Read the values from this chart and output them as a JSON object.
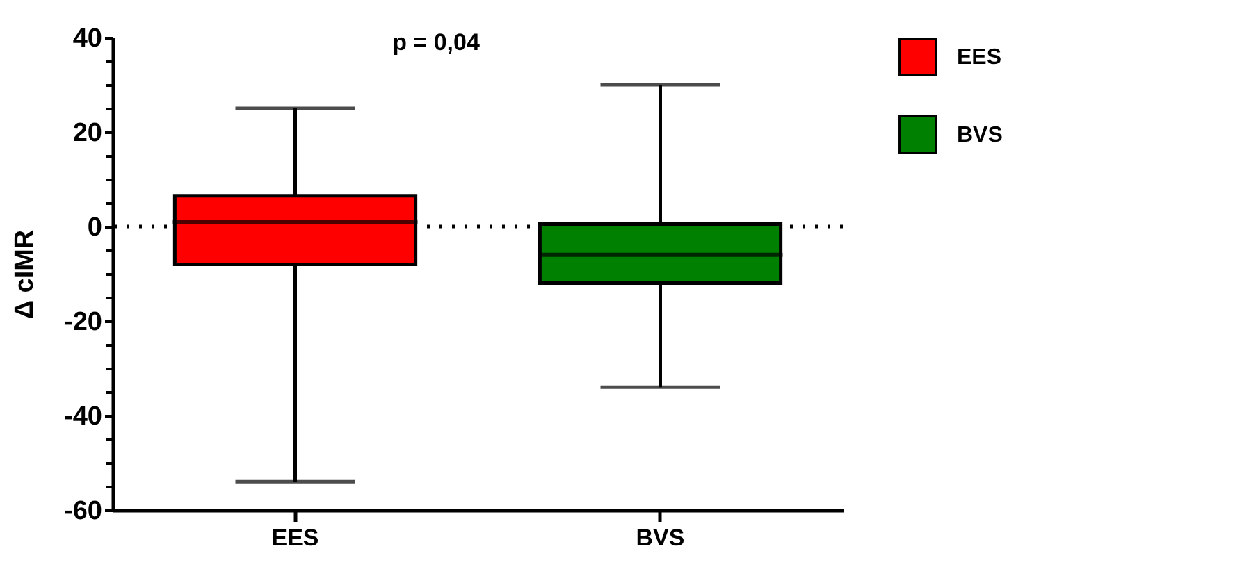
{
  "chart_data": {
    "type": "box",
    "ylabel": "Δ cIMR",
    "categories": [
      "EES",
      "BVS"
    ],
    "ylim": [
      -60,
      40
    ],
    "yticks": [
      -60,
      {
        "value": -55,
        "label": null
      },
      {
        "value": -50,
        "label": null
      },
      {
        "value": -45,
        "label": null
      },
      -40,
      {
        "value": -35,
        "label": null
      },
      {
        "value": -30,
        "label": null
      },
      {
        "value": -25,
        "label": null
      },
      -20,
      {
        "value": -15,
        "label": null
      },
      {
        "value": -10,
        "label": null
      },
      {
        "value": -5,
        "label": null
      },
      0,
      {
        "value": 5,
        "label": null
      },
      {
        "value": 10,
        "label": null
      },
      {
        "value": 15,
        "label": null
      },
      20,
      {
        "value": 25,
        "label": null
      },
      {
        "value": 30,
        "label": null
      },
      {
        "value": 35,
        "label": null
      },
      40
    ],
    "series": [
      {
        "name": "EES",
        "color": "#ff0000",
        "boxes": [
          {
            "low": -54,
            "q1": -8,
            "median": 1,
            "q3": 6.5,
            "high": 25
          },
          null
        ]
      },
      {
        "name": "BVS",
        "color": "#008000",
        "boxes": [
          null,
          {
            "low": -34,
            "q1": -12,
            "median": -6,
            "q3": 0.5,
            "high": 30
          }
        ]
      }
    ],
    "ref_lines": [
      {
        "axis": "y",
        "value": 0,
        "line_style": "dotted"
      }
    ],
    "annotations": [
      "p = 0,04"
    ],
    "legend": "right",
    "grid": false
  }
}
